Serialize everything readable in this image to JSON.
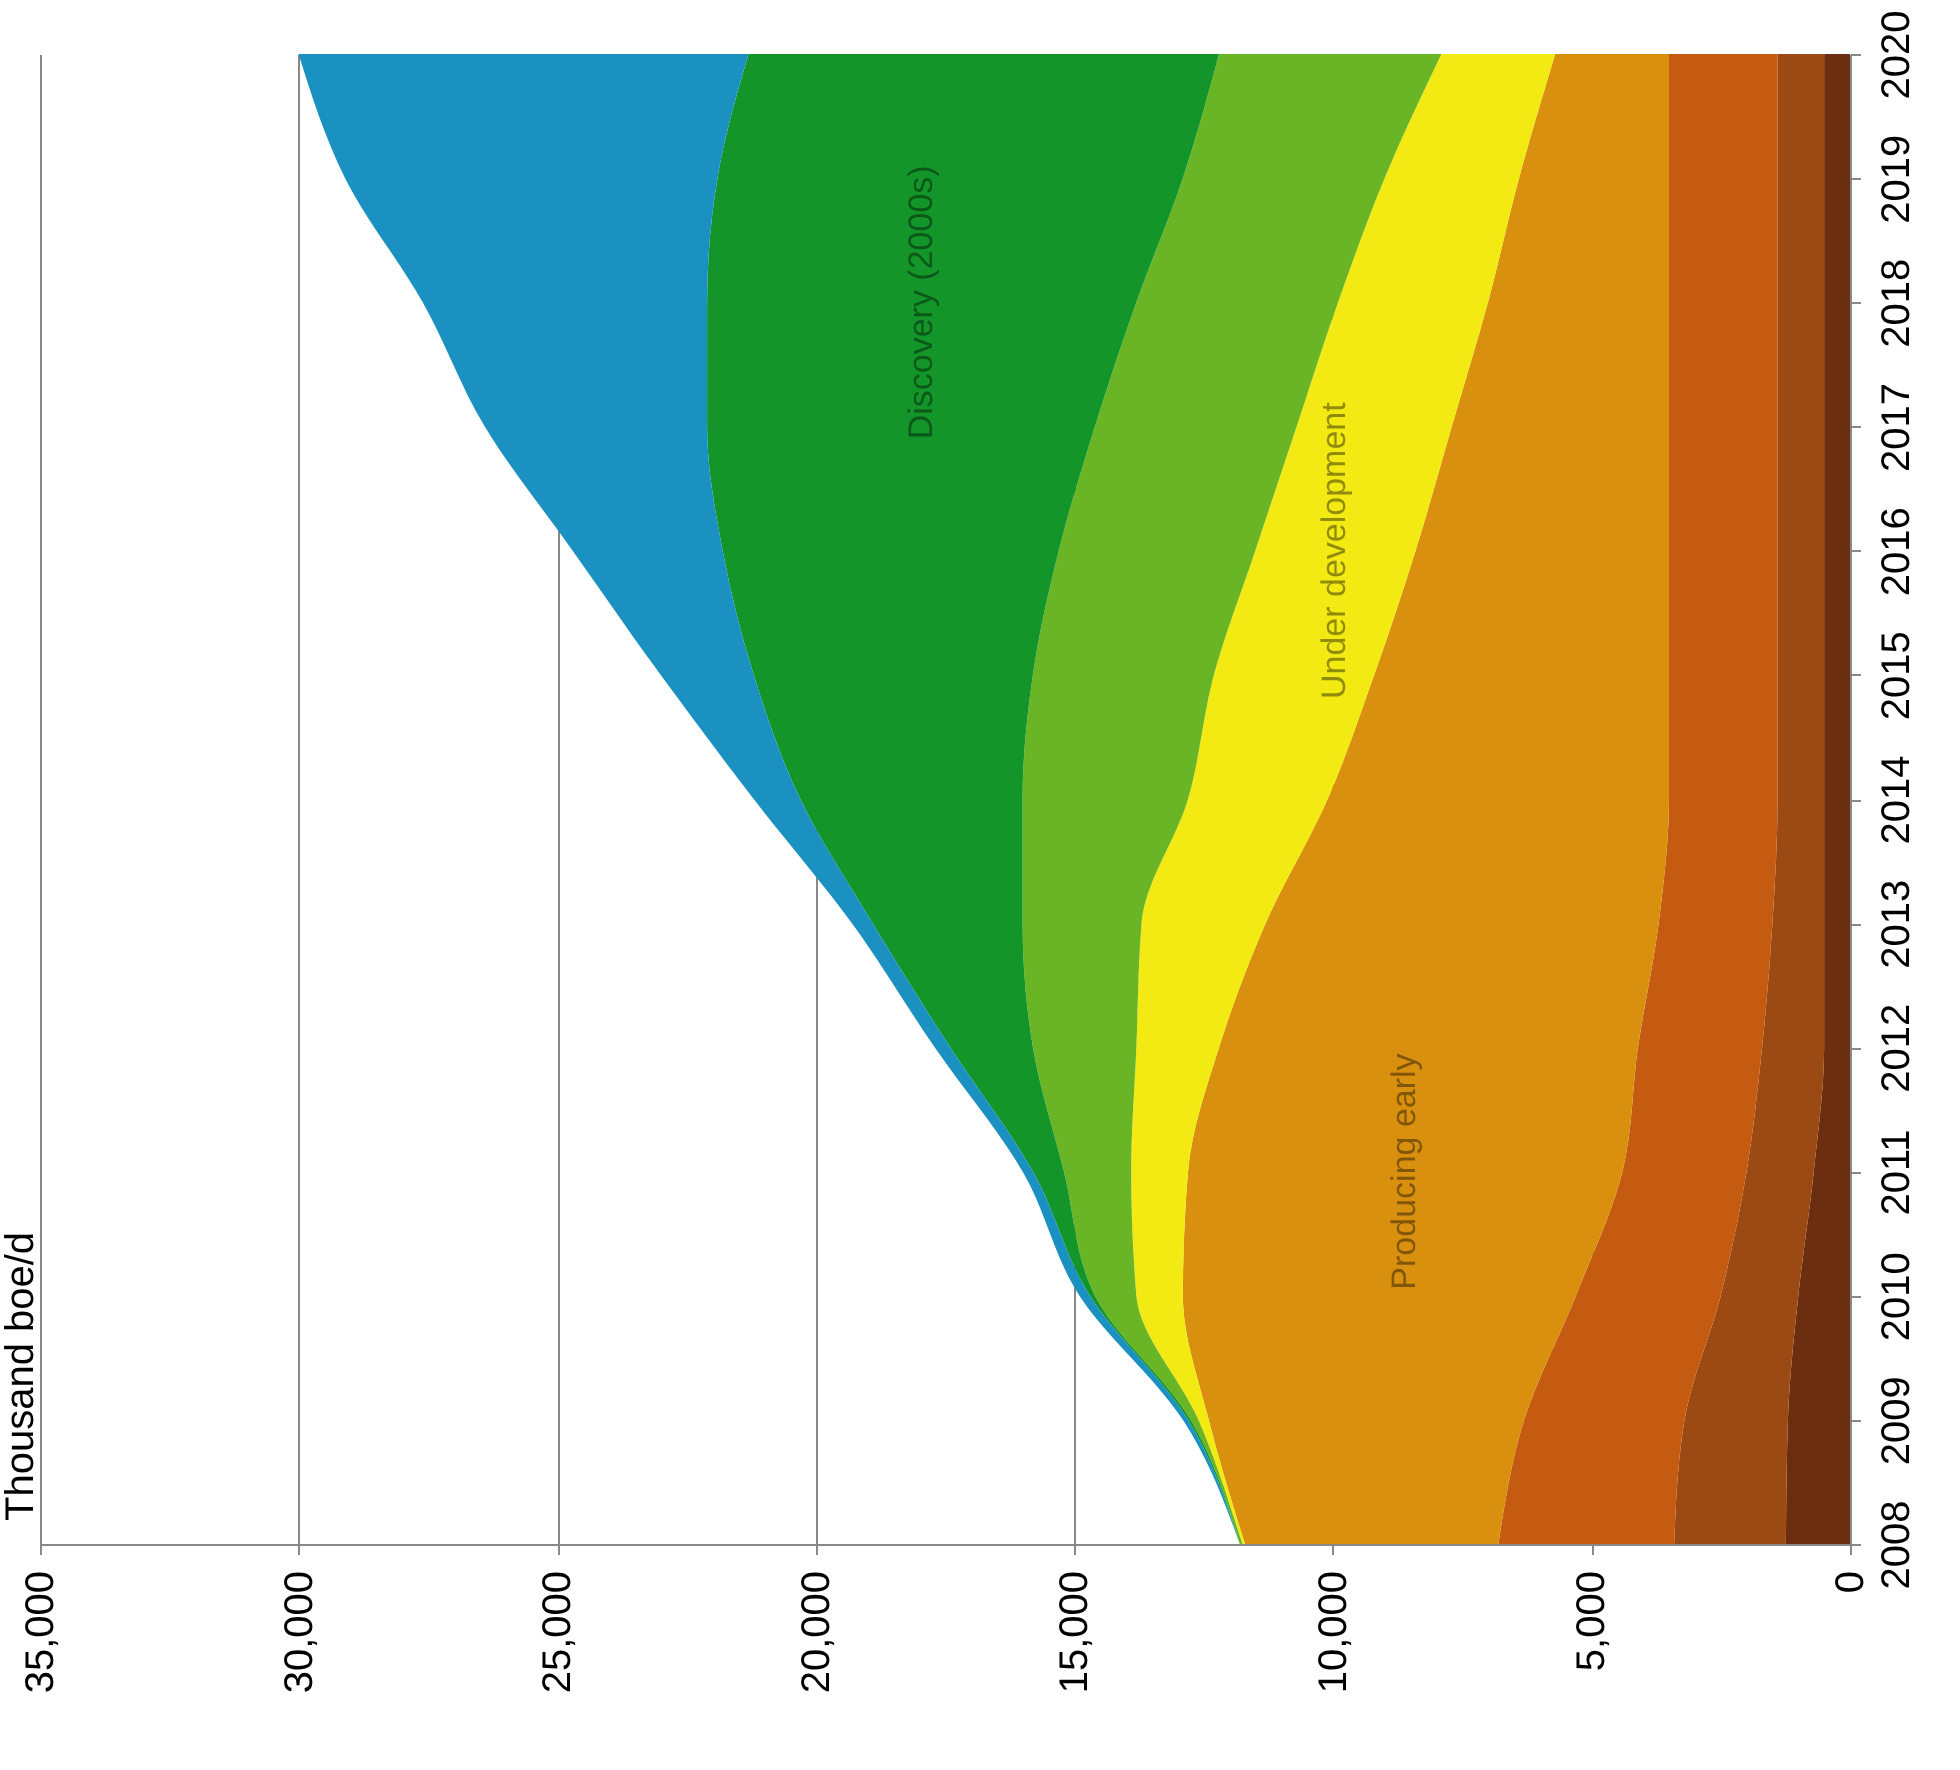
{
  "chart_data": {
    "type": "area",
    "stacked": true,
    "orientation": "horizontal",
    "title": "Thousand boe/d",
    "grid": "x",
    "categories": [
      "2020",
      "2019",
      "2018",
      "2017",
      "2016",
      "2015",
      "2014",
      "2013",
      "2012",
      "2011",
      "2010",
      "2009",
      "2008"
    ],
    "xlim": [
      35000,
      0
    ],
    "xticks": [
      0,
      {
        "value": 5000,
        "label": "5,000"
      },
      {
        "value": 10000,
        "label": "10,000"
      },
      {
        "value": 15000,
        "label": "15,000"
      },
      {
        "value": 20000,
        "label": "20,000"
      },
      {
        "value": 25000,
        "label": "25,000"
      },
      {
        "value": 30000,
        "label": "30,000"
      },
      {
        "value": 35000,
        "label": "35,000"
      }
    ],
    "series": [
      {
        "color": "#6b2e10",
        "values": [
          500,
          500,
          500,
          500,
          500,
          500,
          500,
          500,
          500,
          700,
          1000,
          1200,
          1240
        ]
      },
      {
        "color": "#9c4a14",
        "values": [
          900,
          900,
          900,
          900,
          900,
          900,
          900,
          1000,
          1200,
          1300,
          1500,
          2000,
          2160
        ]
      },
      {
        "color": "#c55a11",
        "values": [
          2100,
          2100,
          2100,
          2100,
          2100,
          2100,
          2100,
          2200,
          2400,
          2400,
          2800,
          3100,
          3400
        ]
      },
      {
        "name": "Producing early",
        "color": "#d9900f",
        "values": [
          2200,
          2900,
          3500,
          4200,
          4900,
          5700,
          6600,
          7600,
          8100,
          8400,
          7600,
          6100,
          4900
        ]
      },
      {
        "name": "Under development",
        "color": "#f2ea12",
        "values": [
          2200,
          2600,
          2900,
          3000,
          3100,
          3100,
          2700,
          2400,
          1600,
          1100,
          900,
          200,
          50
        ]
      },
      {
        "color": "#6ab526",
        "values": [
          4300,
          3900,
          3900,
          3900,
          3800,
          3500,
          3200,
          2300,
          2000,
          1300,
          800,
          150,
          50
        ]
      },
      {
        "name": "Discovery (2000s)",
        "color": "#14952a",
        "values": [
          9100,
          9000,
          8300,
          7500,
          6500,
          5400,
          4300,
          2900,
          1600,
          600,
          100,
          50,
          0
        ]
      },
      {
        "color": "#1a91c0",
        "values": [
          8700,
          7200,
          5500,
          4300,
          2900,
          1800,
          900,
          400,
          300,
          200,
          200,
          100,
          0
        ]
      }
    ]
  }
}
